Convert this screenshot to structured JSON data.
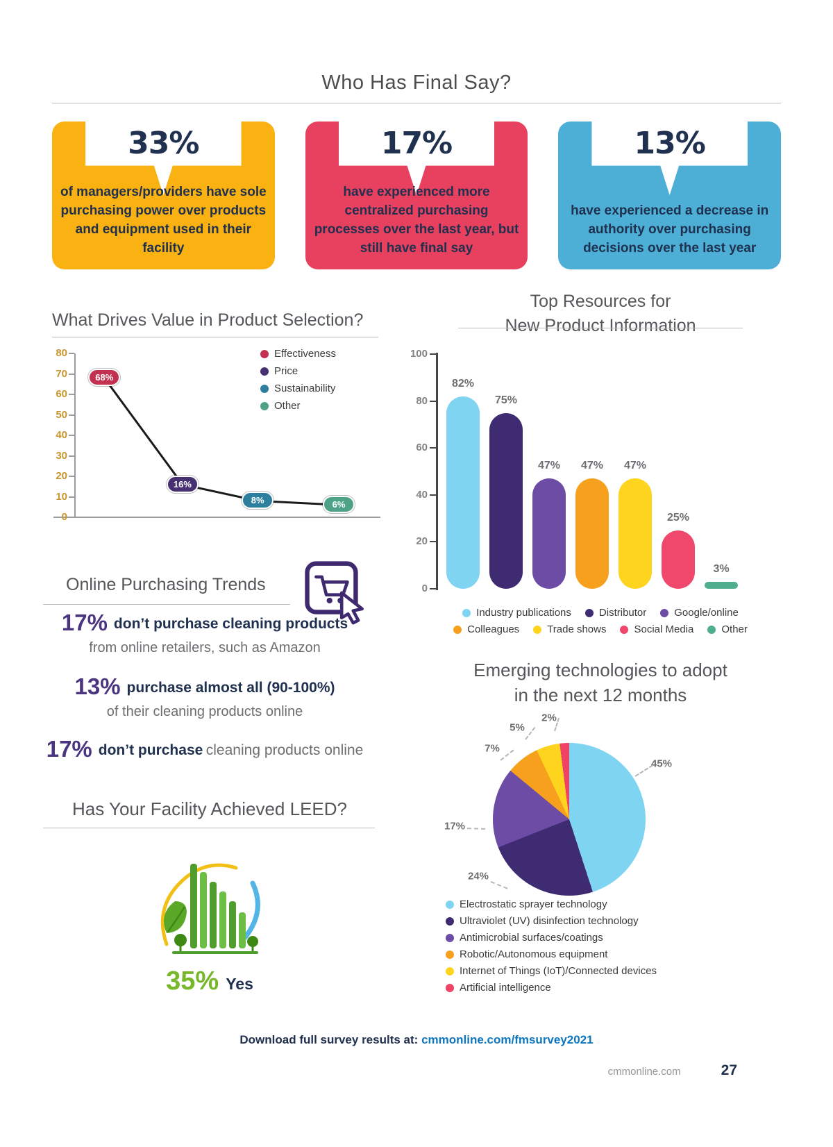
{
  "page": {
    "title": "Who Has Final Say?",
    "footer_prefix": "Download full survey results at:",
    "footer_link": "cmmonline.com/fmsurvey2021",
    "site": "cmmonline.com",
    "page_number": "27"
  },
  "cards": [
    {
      "value": "33%",
      "color": "#F9B211",
      "text": "of managers/providers have sole purchasing power over products and equipment used in their facility"
    },
    {
      "value": "17%",
      "color": "#E8415F",
      "text": "have experienced more centralized purchasing processes over the last year, but still have final say"
    },
    {
      "value": "13%",
      "color": "#4DAFD6",
      "text": "have experienced a decrease in authority over purchasing decisions over the last year"
    }
  ],
  "top_resources": {
    "line1": "Top Resources for",
    "line2": "New Product Information"
  },
  "emerging": {
    "line1": "Emerging technologies to adopt",
    "line2": "in the next 12 months"
  },
  "online_trends": {
    "heading": "Online Purchasing Trends",
    "stats": [
      {
        "value": "17%",
        "bold": "don’t purchase cleaning products",
        "rest": "from online retailers, such as Amazon"
      },
      {
        "value": "13%",
        "bold": "purchase almost all (90-100%)",
        "rest": "of their cleaning products online"
      },
      {
        "value": "17%",
        "bold": "don’t purchase",
        "rest": "cleaning products online"
      }
    ]
  },
  "leed": {
    "heading": "Has Your Facility Achieved LEED?",
    "value": "35%",
    "label": "Yes"
  },
  "chart_data": [
    {
      "type": "line",
      "title": "What Drives Value in Product Selection?",
      "categories": [
        "Effectiveness",
        "Price",
        "Sustainability",
        "Other"
      ],
      "values": [
        68,
        16,
        8,
        6
      ],
      "labels": [
        "68%",
        "16%",
        "8%",
        "6%"
      ],
      "colors": [
        "#C2314F",
        "#463071",
        "#2E7F9E",
        "#4EA287"
      ],
      "ylim": [
        0,
        80
      ],
      "yticks": [
        0,
        10,
        20,
        30,
        40,
        50,
        60,
        70,
        80
      ],
      "legend_position": "top-right",
      "grid": false
    },
    {
      "type": "bar",
      "title": "Top Resources for New Product Information",
      "categories": [
        "Industry publications",
        "Distributor",
        "Google/online",
        "Colleagues",
        "Trade shows",
        "Social Media",
        "Other"
      ],
      "values": [
        82,
        75,
        47,
        47,
        47,
        25,
        3
      ],
      "labels": [
        "82%",
        "75%",
        "47%",
        "47%",
        "47%",
        "25%",
        "3%"
      ],
      "colors": [
        "#7FD4F2",
        "#3F2B72",
        "#6C4CA5",
        "#F6A01E",
        "#FFD41E",
        "#F0486C",
        "#4FAE8E"
      ],
      "ylim": [
        0,
        100
      ],
      "yticks": [
        0,
        20,
        40,
        60,
        80,
        100
      ],
      "legend_position": "bottom",
      "grid": false
    },
    {
      "type": "pie",
      "title": "Emerging technologies to adopt in the next 12 months",
      "categories": [
        "Electrostatic sprayer technology",
        "Ultraviolet (UV) disinfection technology",
        "Antimicrobial surfaces/coatings",
        "Robotic/Autonomous equipment",
        "Internet of Things (IoT)/Connected devices",
        "Artificial intelligence"
      ],
      "values": [
        45,
        24,
        17,
        7,
        5,
        2
      ],
      "labels": [
        "45%",
        "24%",
        "17%",
        "7%",
        "5%",
        "2%"
      ],
      "colors": [
        "#7FD4F2",
        "#3F2B72",
        "#6C4CA5",
        "#F6A01E",
        "#FFD41E",
        "#EE4266"
      ],
      "legend_position": "bottom"
    }
  ]
}
